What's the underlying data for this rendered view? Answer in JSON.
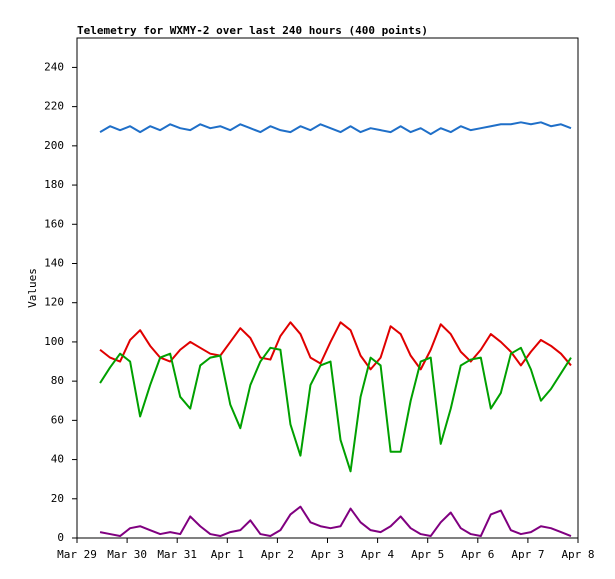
{
  "chart_data": {
    "type": "line",
    "title": "Telemetry for WXMY-2 over last 240 hours (400 points)",
    "y_label": "Values",
    "xlim": [
      0,
      10
    ],
    "xticks": [
      {
        "value": 0,
        "label": "Mar 29"
      },
      {
        "value": 1,
        "label": "Mar 30"
      },
      {
        "value": 2,
        "label": "Mar 31"
      },
      {
        "value": 3,
        "label": "Apr 1"
      },
      {
        "value": 4,
        "label": "Apr 2"
      },
      {
        "value": 5,
        "label": "Apr 3"
      },
      {
        "value": 6,
        "label": "Apr 4"
      },
      {
        "value": 7,
        "label": "Apr 5"
      },
      {
        "value": 8,
        "label": "Apr 6"
      },
      {
        "value": 9,
        "label": "Apr 7"
      },
      {
        "value": 10,
        "label": "Apr 8"
      }
    ],
    "ylim": [
      0,
      255
    ],
    "yticks": [
      0,
      20,
      40,
      60,
      80,
      100,
      120,
      140,
      160,
      180,
      200,
      220,
      240
    ],
    "grid": false,
    "x": [
      0.46,
      0.66,
      0.86,
      1.06,
      1.26,
      1.46,
      1.66,
      1.86,
      2.06,
      2.26,
      2.46,
      2.66,
      2.86,
      3.06,
      3.26,
      3.46,
      3.66,
      3.86,
      4.06,
      4.26,
      4.46,
      4.66,
      4.86,
      5.06,
      5.26,
      5.46,
      5.66,
      5.86,
      6.06,
      6.26,
      6.46,
      6.66,
      6.86,
      7.06,
      7.26,
      7.46,
      7.66,
      7.86,
      8.06,
      8.26,
      8.46,
      8.66,
      8.86,
      9.06,
      9.26,
      9.46,
      9.66,
      9.86
    ],
    "series": [
      {
        "color": "#1f6fc8",
        "values": [
          207,
          210,
          208,
          210,
          207,
          210,
          208,
          211,
          209,
          208,
          211,
          209,
          210,
          208,
          211,
          209,
          207,
          210,
          208,
          207,
          210,
          208,
          211,
          209,
          207,
          210,
          207,
          209,
          208,
          207,
          210,
          207,
          209,
          206,
          209,
          207,
          210,
          208,
          209,
          210,
          211,
          211,
          212,
          211,
          212,
          210,
          211,
          209
        ]
      },
      {
        "color": "#e00000",
        "values": [
          96,
          92,
          90,
          101,
          106,
          98,
          92,
          90,
          96,
          100,
          97,
          94,
          93,
          100,
          107,
          102,
          92,
          91,
          103,
          110,
          104,
          92,
          89,
          100,
          110,
          106,
          93,
          86,
          92,
          108,
          104,
          93,
          86,
          96,
          109,
          104,
          95,
          90,
          96,
          104,
          100,
          95,
          88,
          95,
          101,
          98,
          94,
          88
        ]
      },
      {
        "color": "#00a000",
        "values": [
          79,
          87,
          94,
          90,
          62,
          78,
          92,
          94,
          72,
          66,
          88,
          92,
          93,
          68,
          56,
          78,
          90,
          97,
          96,
          58,
          42,
          78,
          88,
          90,
          50,
          34,
          72,
          92,
          88,
          44,
          44,
          70,
          90,
          92,
          48,
          66,
          88,
          91,
          92,
          66,
          74,
          94,
          97,
          86,
          70,
          76,
          84,
          92
        ]
      },
      {
        "color": "#800080",
        "values": [
          3,
          2,
          1,
          5,
          6,
          4,
          2,
          3,
          2,
          11,
          6,
          2,
          1,
          3,
          4,
          9,
          2,
          1,
          4,
          12,
          16,
          8,
          6,
          5,
          6,
          15,
          8,
          4,
          3,
          6,
          11,
          5,
          2,
          1,
          8,
          13,
          5,
          2,
          1,
          12,
          14,
          4,
          2,
          3,
          6,
          5,
          3,
          1
        ]
      }
    ]
  }
}
